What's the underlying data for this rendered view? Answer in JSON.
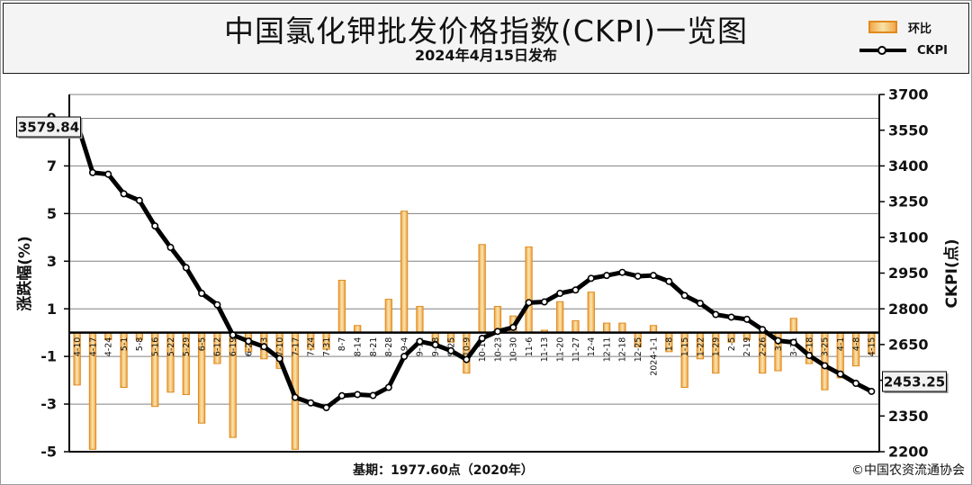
{
  "header": {
    "title": "中国氯化钾批发价格指数(CKPI)一览图",
    "subtitle": "2024年4月15日发布"
  },
  "legend": {
    "bar_label": "环比",
    "line_label": "CKPI"
  },
  "footer": {
    "base_text": "基期：1977.60点（2020年）",
    "copyright": "©中国农资流通协会"
  },
  "colors": {
    "bar_fill": "#f3a84a",
    "bar_stroke": "#e08a1e",
    "line": "#000000",
    "grid": "#808080",
    "callout_bg": "#f2f2f2"
  },
  "chart_data": {
    "type": "bar+line",
    "categories": [
      "4-10",
      "4-17",
      "4-24",
      "5-1",
      "5-8",
      "5-16",
      "5-22",
      "5-29",
      "6-5",
      "6-12",
      "6-19",
      "6-26",
      "7-3",
      "7-10",
      "7-17",
      "7-24",
      "7-31",
      "8-7",
      "8-14",
      "8-21",
      "8-28",
      "9-4",
      "9-11",
      "9-18",
      "9-25",
      "10-9",
      "10-16",
      "10-23",
      "10-30",
      "11-6",
      "11-13",
      "11-20",
      "11-27",
      "12-4",
      "12-11",
      "12-18",
      "12-25",
      "2024-1-1",
      "1-8",
      "1-15",
      "1-22",
      "1-29",
      "2-5",
      "2-19",
      "2-26",
      "3-4",
      "3-11",
      "3-18",
      "3-25",
      "4-1",
      "4-8",
      "4-15"
    ],
    "series": [
      {
        "name": "环比",
        "axis": "left",
        "unit": "%",
        "values": [
          -2.2,
          -4.9,
          -0.3,
          -2.3,
          -0.3,
          -3.1,
          -2.5,
          -2.6,
          -3.8,
          -1.3,
          -4.4,
          -0.8,
          -1.1,
          -1.5,
          -4.9,
          -0.7,
          -0.7,
          2.2,
          0.3,
          0.0,
          1.4,
          5.1,
          1.1,
          -0.5,
          -0.4,
          -1.7,
          3.7,
          1.1,
          0.7,
          3.6,
          0.1,
          1.3,
          0.5,
          1.7,
          0.4,
          0.4,
          -0.6,
          0.3,
          -0.8,
          -2.3,
          -1.1,
          -1.7,
          -0.4,
          -0.3,
          -1.7,
          -1.6,
          0.6,
          -1.3,
          -2.4,
          -1.9,
          -1.4,
          -0.9
        ]
      },
      {
        "name": "CKPI",
        "axis": "right",
        "unit": "点",
        "values": [
          3579.84,
          3372,
          3365,
          3283,
          3255,
          3148,
          3058,
          2973,
          2865,
          2817,
          2690,
          2664,
          2641,
          2591,
          2428,
          2405,
          2385,
          2435,
          2440,
          2436,
          2470,
          2600,
          2663,
          2649,
          2624,
          2587,
          2676,
          2705,
          2722,
          2826,
          2829,
          2865,
          2879,
          2928,
          2940,
          2953,
          2937,
          2940,
          2915,
          2856,
          2823,
          2776,
          2765,
          2756,
          2713,
          2666,
          2659,
          2604,
          2561,
          2526,
          2487,
          2453.25
        ]
      }
    ],
    "left_axis": {
      "label": "涨跌幅(%)",
      "ticks": [
        -5,
        -3,
        -1,
        1,
        3,
        5,
        7,
        9
      ],
      "ylim": [
        -5,
        10.0
      ]
    },
    "right_axis": {
      "label": "CKPI(点)",
      "ticks": [
        2200,
        2350,
        2500,
        2650,
        2800,
        2950,
        3100,
        3250,
        3400,
        3550,
        3700
      ],
      "ylim": [
        2200,
        3700
      ]
    },
    "callouts": {
      "start": "3579.84",
      "end": "2453.25"
    },
    "grid": true,
    "legend_position": "top-right"
  }
}
